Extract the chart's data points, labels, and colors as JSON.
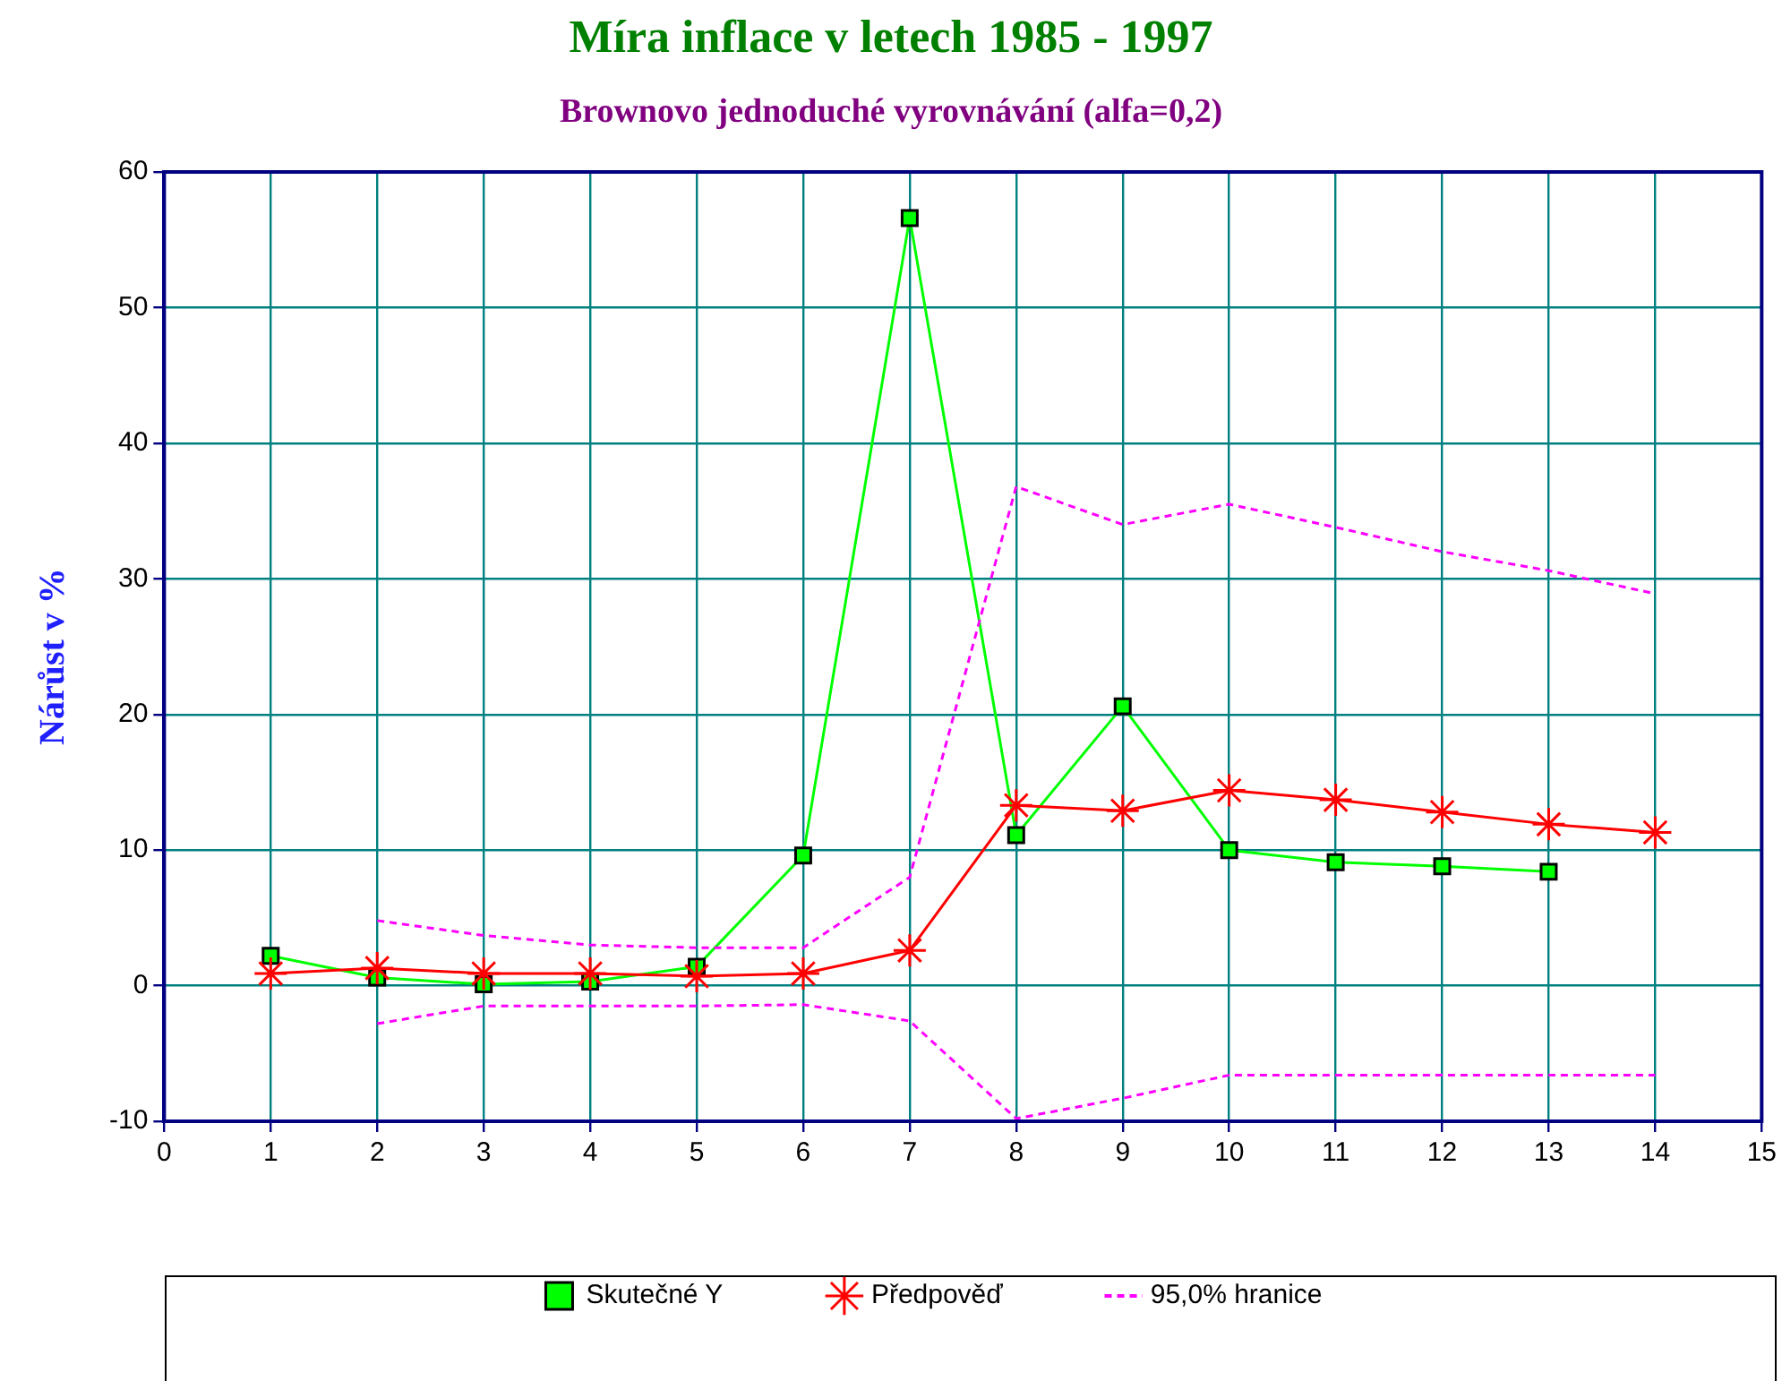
{
  "chart_data": {
    "type": "line",
    "title": "Míra inflace v letech 1985 - 1997",
    "subtitle": "Brownovo jednoduché vyrovnávání (alfa=0,2)",
    "ylabel": "Nárůst v %",
    "xlim": [
      0,
      15
    ],
    "xticks": [
      0,
      1,
      2,
      3,
      4,
      5,
      6,
      7,
      8,
      9,
      10,
      11,
      12,
      13,
      14,
      15
    ],
    "ylim": [
      -10,
      60
    ],
    "yticks": [
      -10,
      0,
      10,
      20,
      30,
      40,
      50,
      60
    ],
    "grid": true,
    "legend": "bottom",
    "series": [
      {
        "name": "Skutečné Y",
        "color": "#00ff00",
        "marker": "square",
        "line_style": "solid",
        "x": [
          1,
          2,
          3,
          4,
          5,
          6,
          7,
          8,
          9,
          10,
          11,
          12,
          13
        ],
        "values": [
          2.2,
          0.6,
          0.1,
          0.3,
          1.4,
          9.6,
          56.6,
          11.1,
          20.6,
          10.0,
          9.1,
          8.8,
          8.4
        ]
      },
      {
        "name": "Předpověď",
        "color": "#ff0000",
        "marker": "cross",
        "line_style": "solid",
        "x": [
          1,
          2,
          3,
          4,
          5,
          6,
          7,
          8,
          9,
          10,
          11,
          12,
          13,
          14
        ],
        "values": [
          0.9,
          1.3,
          0.9,
          0.9,
          0.7,
          0.9,
          2.6,
          13.3,
          12.9,
          14.4,
          13.7,
          12.8,
          11.9,
          11.3
        ]
      },
      {
        "name": "95,0% hranice",
        "color": "#ff00ff",
        "marker": "none",
        "line_style": "dashed",
        "x": [
          2,
          3,
          4,
          5,
          6,
          7,
          8,
          9,
          10,
          11,
          12,
          13,
          14
        ],
        "values": [
          4.8,
          3.7,
          3.0,
          2.8,
          2.8,
          8.0,
          36.8,
          34.0,
          35.5,
          33.8,
          32.0,
          30.6,
          28.9
        ]
      },
      {
        "color": "#ff00ff",
        "marker": "none",
        "line_style": "dashed",
        "x": [
          2,
          3,
          4,
          5,
          6,
          7,
          8,
          9,
          10,
          11,
          12,
          13,
          14
        ],
        "values": [
          -2.8,
          -1.5,
          -1.5,
          -1.5,
          -1.4,
          -2.6,
          -9.8,
          -8.3,
          -6.6,
          -6.6,
          -6.6,
          -6.6,
          -6.6
        ]
      }
    ]
  }
}
